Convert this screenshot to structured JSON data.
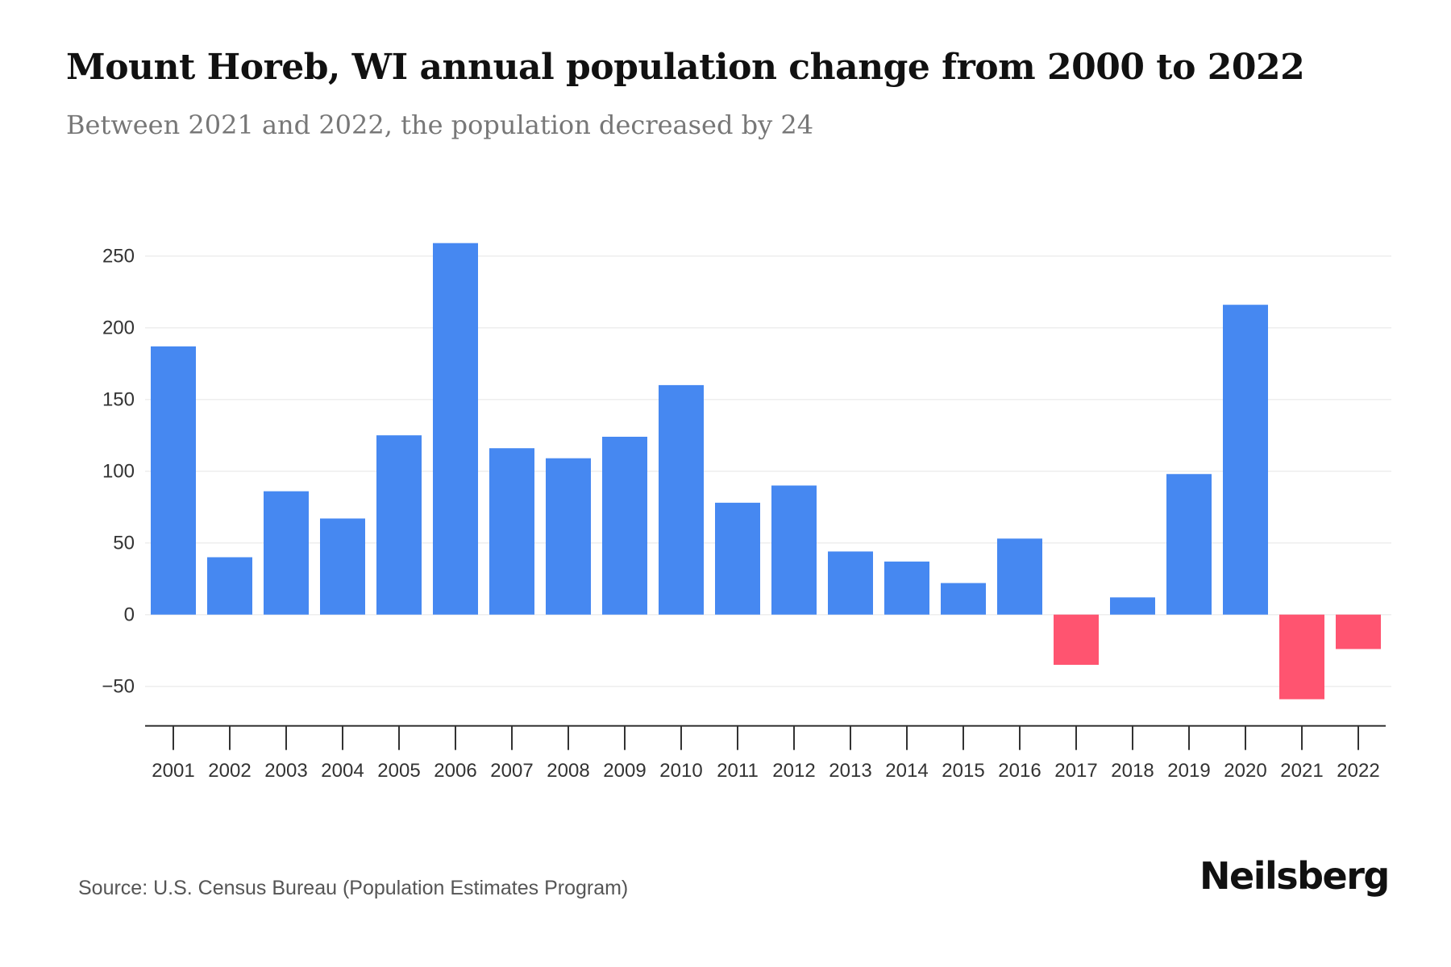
{
  "header": {
    "title": "Mount Horeb, WI annual population change from 2000 to 2022",
    "subtitle": "Between 2021 and 2022, the population decreased by 24"
  },
  "footer": {
    "source": "Source: U.S. Census Bureau (Population Estimates Program)",
    "brand": "Neilsberg"
  },
  "colors": {
    "positive": "#4688F1",
    "negative": "#FF5470",
    "gridline": "#EEEEEE",
    "axis": "#333333"
  },
  "chart_data": {
    "type": "bar",
    "title": "Mount Horeb, WI annual population change from 2000 to 2022",
    "subtitle": "Between 2021 and 2022, the population decreased by 24",
    "xlabel": "",
    "ylabel": "",
    "categories": [
      "2001",
      "2002",
      "2003",
      "2004",
      "2005",
      "2006",
      "2007",
      "2008",
      "2009",
      "2010",
      "2011",
      "2012",
      "2013",
      "2014",
      "2015",
      "2016",
      "2017",
      "2018",
      "2019",
      "2020",
      "2021",
      "2022"
    ],
    "values": [
      187,
      40,
      86,
      67,
      125,
      259,
      116,
      109,
      124,
      160,
      78,
      90,
      44,
      37,
      22,
      53,
      -35,
      12,
      98,
      216,
      -59,
      -24
    ],
    "ylim": [
      -77,
      270
    ],
    "yticks": [
      250,
      200,
      150,
      100,
      50,
      0,
      -50
    ],
    "ytick_labels": [
      "250",
      "200",
      "150",
      "100",
      "50",
      "0",
      "−50"
    ],
    "grid": true,
    "legend": "none",
    "color_rule": "positive values blue, negative values red"
  }
}
